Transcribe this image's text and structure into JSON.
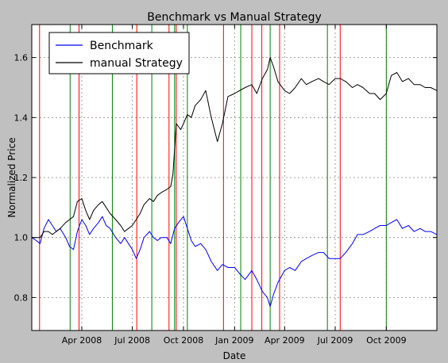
{
  "chart_data": {
    "type": "line",
    "title": "Benchmark vs Manual Strategy",
    "xlabel": "Date",
    "ylabel": "Normalized Price",
    "x_range": [
      "2008-01-02",
      "2009-12-31"
    ],
    "ylim": [
      0.69,
      1.71
    ],
    "grid": true,
    "legend_position": "top-left",
    "x_ticks": [
      {
        "date": "2008-04-01",
        "label": "Apr 2008"
      },
      {
        "date": "2008-07-01",
        "label": "Jul 2008"
      },
      {
        "date": "2008-10-01",
        "label": "Oct 2008"
      },
      {
        "date": "2009-01-01",
        "label": "Jan 2009"
      },
      {
        "date": "2009-04-01",
        "label": "Apr 2009"
      },
      {
        "date": "2009-07-01",
        "label": "Jul 2009"
      },
      {
        "date": "2009-10-01",
        "label": "Oct 2009"
      }
    ],
    "y_ticks": [
      {
        "value": 0.8,
        "label": "0.8"
      },
      {
        "value": 1.0,
        "label": "1.0"
      },
      {
        "value": 1.2,
        "label": "1.2"
      },
      {
        "value": 1.4,
        "label": "1.4"
      },
      {
        "value": 1.6,
        "label": "1.6"
      }
    ],
    "series": [
      {
        "name": "Benchmark",
        "color": "#0000ff",
        "points": [
          [
            "2008-01-02",
            1.0
          ],
          [
            "2008-01-10",
            0.99
          ],
          [
            "2008-01-17",
            0.98
          ],
          [
            "2008-01-24",
            1.03
          ],
          [
            "2008-02-01",
            1.06
          ],
          [
            "2008-02-08",
            1.04
          ],
          [
            "2008-02-15",
            1.02
          ],
          [
            "2008-02-22",
            1.03
          ],
          [
            "2008-03-03",
            1.0
          ],
          [
            "2008-03-10",
            0.97
          ],
          [
            "2008-03-17",
            0.96
          ],
          [
            "2008-03-24",
            1.02
          ],
          [
            "2008-04-01",
            1.06
          ],
          [
            "2008-04-08",
            1.04
          ],
          [
            "2008-04-15",
            1.01
          ],
          [
            "2008-04-22",
            1.03
          ],
          [
            "2008-05-01",
            1.05
          ],
          [
            "2008-05-08",
            1.07
          ],
          [
            "2008-05-15",
            1.04
          ],
          [
            "2008-05-22",
            1.03
          ],
          [
            "2008-06-01",
            1.0
          ],
          [
            "2008-06-10",
            0.98
          ],
          [
            "2008-06-17",
            1.0
          ],
          [
            "2008-06-24",
            0.98
          ],
          [
            "2008-07-01",
            0.96
          ],
          [
            "2008-07-08",
            0.93
          ],
          [
            "2008-07-15",
            0.96
          ],
          [
            "2008-07-22",
            1.0
          ],
          [
            "2008-08-01",
            1.02
          ],
          [
            "2008-08-08",
            1.0
          ],
          [
            "2008-08-15",
            0.99
          ],
          [
            "2008-08-22",
            1.0
          ],
          [
            "2008-09-01",
            1.0
          ],
          [
            "2008-09-08",
            0.98
          ],
          [
            "2008-09-15",
            1.03
          ],
          [
            "2008-09-22",
            1.05
          ],
          [
            "2008-10-01",
            1.07
          ],
          [
            "2008-10-08",
            1.03
          ],
          [
            "2008-10-15",
            0.99
          ],
          [
            "2008-10-22",
            0.97
          ],
          [
            "2008-11-01",
            0.98
          ],
          [
            "2008-11-10",
            0.96
          ],
          [
            "2008-11-20",
            0.92
          ],
          [
            "2008-12-01",
            0.89
          ],
          [
            "2008-12-10",
            0.91
          ],
          [
            "2008-12-20",
            0.9
          ],
          [
            "2009-01-01",
            0.9
          ],
          [
            "2009-01-10",
            0.88
          ],
          [
            "2009-01-20",
            0.86
          ],
          [
            "2009-02-01",
            0.89
          ],
          [
            "2009-02-10",
            0.86
          ],
          [
            "2009-02-20",
            0.82
          ],
          [
            "2009-03-01",
            0.8
          ],
          [
            "2009-03-06",
            0.77
          ],
          [
            "2009-03-12",
            0.81
          ],
          [
            "2009-03-20",
            0.85
          ],
          [
            "2009-04-01",
            0.89
          ],
          [
            "2009-04-10",
            0.9
          ],
          [
            "2009-04-20",
            0.89
          ],
          [
            "2009-05-01",
            0.92
          ],
          [
            "2009-05-10",
            0.93
          ],
          [
            "2009-05-20",
            0.94
          ],
          [
            "2009-06-01",
            0.95
          ],
          [
            "2009-06-10",
            0.95
          ],
          [
            "2009-06-20",
            0.93
          ],
          [
            "2009-07-01",
            0.93
          ],
          [
            "2009-07-10",
            0.93
          ],
          [
            "2009-07-20",
            0.95
          ],
          [
            "2009-08-01",
            0.98
          ],
          [
            "2009-08-10",
            1.01
          ],
          [
            "2009-08-20",
            1.01
          ],
          [
            "2009-09-01",
            1.02
          ],
          [
            "2009-09-10",
            1.03
          ],
          [
            "2009-09-20",
            1.04
          ],
          [
            "2009-10-01",
            1.04
          ],
          [
            "2009-10-10",
            1.05
          ],
          [
            "2009-10-20",
            1.06
          ],
          [
            "2009-10-30",
            1.03
          ],
          [
            "2009-11-10",
            1.04
          ],
          [
            "2009-11-20",
            1.02
          ],
          [
            "2009-12-01",
            1.03
          ],
          [
            "2009-12-10",
            1.02
          ],
          [
            "2009-12-20",
            1.02
          ],
          [
            "2009-12-31",
            1.01
          ]
        ]
      },
      {
        "name": "manual Strategy",
        "color": "#000000",
        "points": [
          [
            "2008-01-02",
            1.0
          ],
          [
            "2008-01-10",
            1.0
          ],
          [
            "2008-01-17",
            1.0
          ],
          [
            "2008-01-24",
            1.02
          ],
          [
            "2008-02-01",
            1.02
          ],
          [
            "2008-02-08",
            1.01
          ],
          [
            "2008-02-15",
            1.02
          ],
          [
            "2008-02-22",
            1.03
          ],
          [
            "2008-03-03",
            1.05
          ],
          [
            "2008-03-10",
            1.06
          ],
          [
            "2008-03-17",
            1.07
          ],
          [
            "2008-03-24",
            1.12
          ],
          [
            "2008-04-01",
            1.13
          ],
          [
            "2008-04-08",
            1.09
          ],
          [
            "2008-04-15",
            1.06
          ],
          [
            "2008-04-22",
            1.09
          ],
          [
            "2008-05-01",
            1.11
          ],
          [
            "2008-05-08",
            1.12
          ],
          [
            "2008-05-15",
            1.1
          ],
          [
            "2008-05-22",
            1.08
          ],
          [
            "2008-06-01",
            1.06
          ],
          [
            "2008-06-10",
            1.04
          ],
          [
            "2008-06-17",
            1.02
          ],
          [
            "2008-06-24",
            1.03
          ],
          [
            "2008-07-01",
            1.04
          ],
          [
            "2008-07-08",
            1.06
          ],
          [
            "2008-07-15",
            1.08
          ],
          [
            "2008-07-22",
            1.11
          ],
          [
            "2008-08-01",
            1.13
          ],
          [
            "2008-08-08",
            1.12
          ],
          [
            "2008-08-15",
            1.14
          ],
          [
            "2008-08-22",
            1.15
          ],
          [
            "2008-09-01",
            1.16
          ],
          [
            "2008-09-08",
            1.17
          ],
          [
            "2008-09-12",
            1.21
          ],
          [
            "2008-09-18",
            1.38
          ],
          [
            "2008-09-26",
            1.36
          ],
          [
            "2008-10-01",
            1.38
          ],
          [
            "2008-10-08",
            1.41
          ],
          [
            "2008-10-15",
            1.4
          ],
          [
            "2008-10-22",
            1.44
          ],
          [
            "2008-11-01",
            1.46
          ],
          [
            "2008-11-10",
            1.49
          ],
          [
            "2008-11-20",
            1.4
          ],
          [
            "2008-12-01",
            1.32
          ],
          [
            "2008-12-10",
            1.38
          ],
          [
            "2008-12-20",
            1.47
          ],
          [
            "2009-01-01",
            1.48
          ],
          [
            "2009-01-10",
            1.49
          ],
          [
            "2009-01-20",
            1.5
          ],
          [
            "2009-02-01",
            1.51
          ],
          [
            "2009-02-10",
            1.48
          ],
          [
            "2009-02-20",
            1.53
          ],
          [
            "2009-03-01",
            1.56
          ],
          [
            "2009-03-06",
            1.6
          ],
          [
            "2009-03-12",
            1.57
          ],
          [
            "2009-03-20",
            1.52
          ],
          [
            "2009-04-01",
            1.49
          ],
          [
            "2009-04-10",
            1.48
          ],
          [
            "2009-04-20",
            1.5
          ],
          [
            "2009-05-01",
            1.53
          ],
          [
            "2009-05-10",
            1.51
          ],
          [
            "2009-05-20",
            1.52
          ],
          [
            "2009-06-01",
            1.53
          ],
          [
            "2009-06-10",
            1.52
          ],
          [
            "2009-06-20",
            1.51
          ],
          [
            "2009-07-01",
            1.53
          ],
          [
            "2009-07-10",
            1.53
          ],
          [
            "2009-07-20",
            1.52
          ],
          [
            "2009-08-01",
            1.5
          ],
          [
            "2009-08-10",
            1.51
          ],
          [
            "2009-08-20",
            1.5
          ],
          [
            "2009-09-01",
            1.48
          ],
          [
            "2009-09-10",
            1.48
          ],
          [
            "2009-09-20",
            1.46
          ],
          [
            "2009-10-01",
            1.48
          ],
          [
            "2009-10-10",
            1.54
          ],
          [
            "2009-10-20",
            1.55
          ],
          [
            "2009-10-30",
            1.52
          ],
          [
            "2009-11-10",
            1.53
          ],
          [
            "2009-11-20",
            1.51
          ],
          [
            "2009-12-01",
            1.51
          ],
          [
            "2009-12-10",
            1.5
          ],
          [
            "2009-12-20",
            1.5
          ],
          [
            "2009-12-31",
            1.49
          ]
        ]
      }
    ],
    "vertical_markers": [
      {
        "date": "2008-01-16",
        "color": "#ff0000"
      },
      {
        "date": "2008-03-11",
        "color": "#008000"
      },
      {
        "date": "2008-03-27",
        "color": "#ff0000"
      },
      {
        "date": "2008-05-26",
        "color": "#008000"
      },
      {
        "date": "2008-07-09",
        "color": "#ff0000"
      },
      {
        "date": "2008-08-05",
        "color": "#008000"
      },
      {
        "date": "2008-09-05",
        "color": "#ff0000"
      },
      {
        "date": "2008-09-15",
        "color": "#008000"
      },
      {
        "date": "2008-09-18",
        "color": "#ff0000"
      },
      {
        "date": "2008-10-08",
        "color": "#008000"
      },
      {
        "date": "2008-12-12",
        "color": "#ff0000"
      },
      {
        "date": "2009-01-12",
        "color": "#008000"
      },
      {
        "date": "2009-02-01",
        "color": "#ff0000"
      },
      {
        "date": "2009-02-19",
        "color": "#ff0000"
      },
      {
        "date": "2009-03-06",
        "color": "#008000"
      },
      {
        "date": "2009-03-23",
        "color": "#ff0000"
      },
      {
        "date": "2009-06-17",
        "color": "#008000"
      },
      {
        "date": "2009-07-10",
        "color": "#ff0000"
      },
      {
        "date": "2009-10-01",
        "color": "#008000"
      }
    ]
  }
}
